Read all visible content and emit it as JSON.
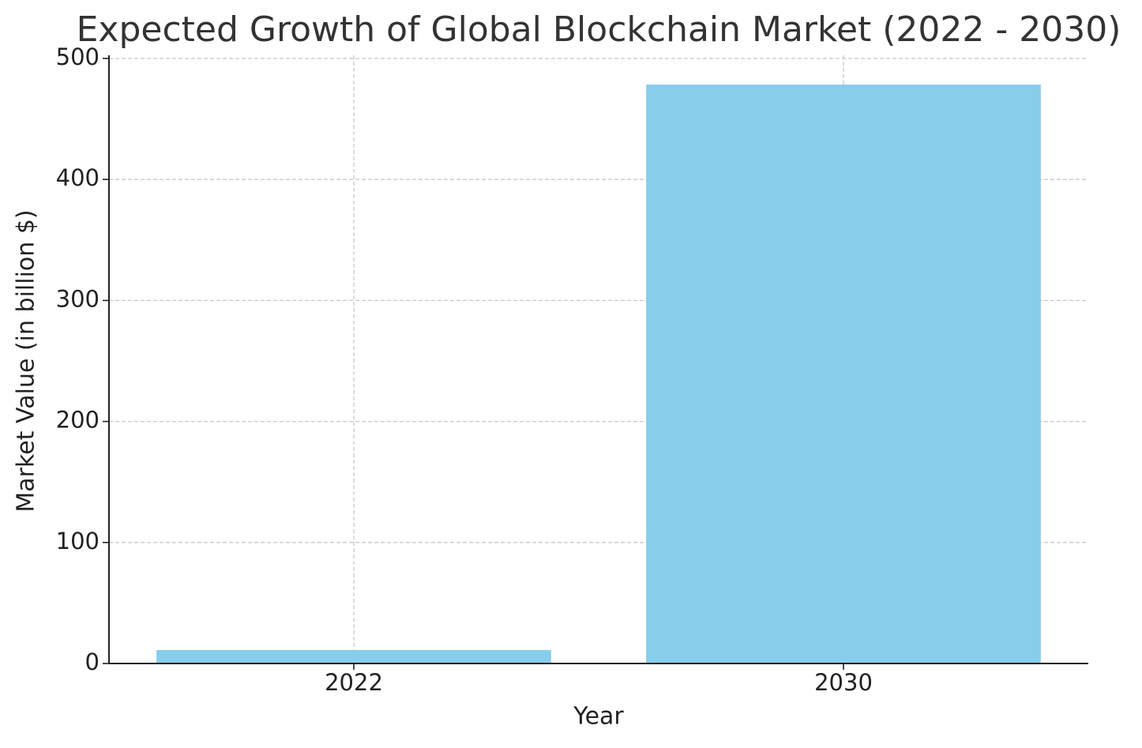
{
  "chart_data": {
    "type": "bar",
    "title": "Expected Growth of Global Blockchain Market (2022 - 2030)",
    "x_label": "Year",
    "y_label": "Market Value (in billion $)",
    "categories": [
      "2022",
      "2030"
    ],
    "values": [
      11.1,
      478.4
    ],
    "color": "#87ceeb",
    "ylim": [
      0,
      500
    ],
    "yticks": [
      0,
      100,
      200,
      300,
      400,
      500
    ],
    "grid": true
  }
}
